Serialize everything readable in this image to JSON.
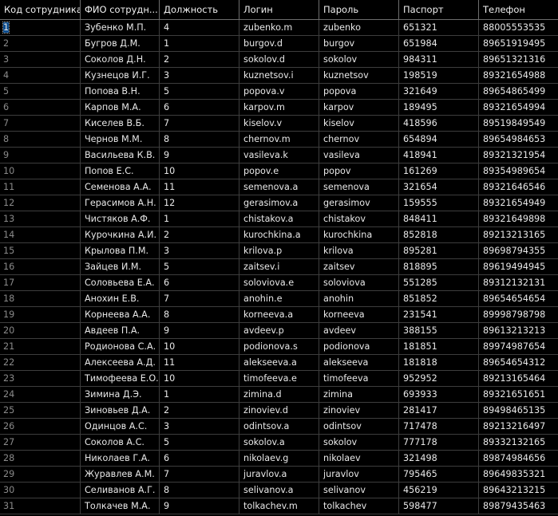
{
  "columns": [
    "Код сотрудника",
    "ФИО сотрудн...",
    "Должность",
    "Логин",
    "Пароль",
    "Паспорт",
    "Телефон"
  ],
  "rows": [
    [
      "1",
      "Зубенко М.П.",
      "4",
      "zubenko.m",
      "zubenko",
      "651321",
      "88005553535"
    ],
    [
      "2",
      "Бугров Д.М.",
      "1",
      "burgov.d",
      "burgov",
      "651984",
      "89651919495"
    ],
    [
      "3",
      "Соколов Д.Н.",
      "2",
      "sokolov.d",
      "sokolov",
      "984311",
      "89651321316"
    ],
    [
      "4",
      "Кузнецов И.Г.",
      "3",
      "kuznetsov.i",
      "kuznetsov",
      "198519",
      "89321654988"
    ],
    [
      "5",
      "Попова В.Н.",
      "5",
      "popova.v",
      "popova",
      "321649",
      "89654865499"
    ],
    [
      "6",
      "Карпов М.А.",
      "6",
      "karpov.m",
      "karpov",
      "189495",
      "89321654994"
    ],
    [
      "7",
      "Киселев В.Б.",
      "7",
      "kiselov.v",
      "kiselov",
      "418596",
      "89519849549"
    ],
    [
      "8",
      "Чернов М.М.",
      "8",
      "chernov.m",
      "chernov",
      "654894",
      "89654984653"
    ],
    [
      "9",
      "Васильева К.В.",
      "9",
      "vasileva.k",
      "vasileva",
      "418941",
      "89321321954"
    ],
    [
      "10",
      "Попов Е.С.",
      "10",
      "popov.e",
      "popov",
      "161269",
      "89354989654"
    ],
    [
      "11",
      "Семенова А.А.",
      "11",
      "semenova.a",
      "semenova",
      "321654",
      "89321646546"
    ],
    [
      "12",
      "Герасимов А.Н.",
      "12",
      "gerasimov.a",
      "gerasimov",
      "159555",
      "89321654949"
    ],
    [
      "13",
      "Чистяков А.Ф.",
      "1",
      "chistakov.a",
      "chistakov",
      "848411",
      "89321649898"
    ],
    [
      "14",
      "Курочкина А.И.",
      "2",
      "kurochkina.a",
      "kurochkina",
      "852818",
      "89213213165"
    ],
    [
      "15",
      "Крылова П.М.",
      "3",
      "krilova.p",
      "krilova",
      "895281",
      "89698794355"
    ],
    [
      "16",
      "Зайцев И.М.",
      "5",
      "zaitsev.i",
      "zaitsev",
      "818895",
      "89619494945"
    ],
    [
      "17",
      "Соловьева Е.А.",
      "6",
      "soloviova.e",
      "soloviova",
      "551285",
      "89312132131"
    ],
    [
      "18",
      "Анохин Е.В.",
      "7",
      "anohin.e",
      "anohin",
      "851852",
      "89654654654"
    ],
    [
      "19",
      "Корнеева А.А.",
      "8",
      "korneeva.a",
      "korneeva",
      "231541",
      "89998798798"
    ],
    [
      "20",
      "Авдеев П.А.",
      "9",
      "avdeev.p",
      "avdeev",
      "388155",
      "89613213213"
    ],
    [
      "21",
      "Родионова С.А.",
      "10",
      "podionova.s",
      "podionova",
      "181851",
      "89974987654"
    ],
    [
      "22",
      "Алексеева А.Д.",
      "11",
      "alekseeva.a",
      "alekseeva",
      "181818",
      "89654654312"
    ],
    [
      "23",
      "Тимофеева Е.О.",
      "10",
      "timofeeva.e",
      "timofeeva",
      "952952",
      "89213165464"
    ],
    [
      "24",
      "Зимина Д.Э.",
      "1",
      "zimina.d",
      "zimina",
      "693933",
      "89321651651"
    ],
    [
      "25",
      "Зиновьев Д.А.",
      "2",
      "zinoviev.d",
      "zinoviev",
      "281417",
      "89498465135"
    ],
    [
      "26",
      "Одинцов А.С.",
      "3",
      "odintsov.a",
      "odintsov",
      "717478",
      "89213216497"
    ],
    [
      "27",
      "Соколов А.С.",
      "5",
      "sokolov.a",
      "sokolov",
      "777178",
      "89332132165"
    ],
    [
      "28",
      "Николаев Г.А.",
      "6",
      "nikolaev.g",
      "nikolaev",
      "321498",
      "89874984656"
    ],
    [
      "29",
      "Журавлев А.М.",
      "7",
      "juravlov.a",
      "juravlov",
      "795465",
      "89649835321"
    ],
    [
      "30",
      "Селиванов А.Г.",
      "8",
      "selivanov.a",
      "selivanov",
      "456219",
      "89643213215"
    ],
    [
      "31",
      "Толкачев М.А.",
      "9",
      "tolkachev.m",
      "tolkachev",
      "598477",
      "89879435463"
    ]
  ],
  "colors": {
    "background": "#000000",
    "header_text": "#f0f0f0",
    "cell_text": "#e8e8e8",
    "row_number_text": "#8a8a8a",
    "grid_line": "#3d3d3d",
    "selection": "#0b4d8f"
  }
}
